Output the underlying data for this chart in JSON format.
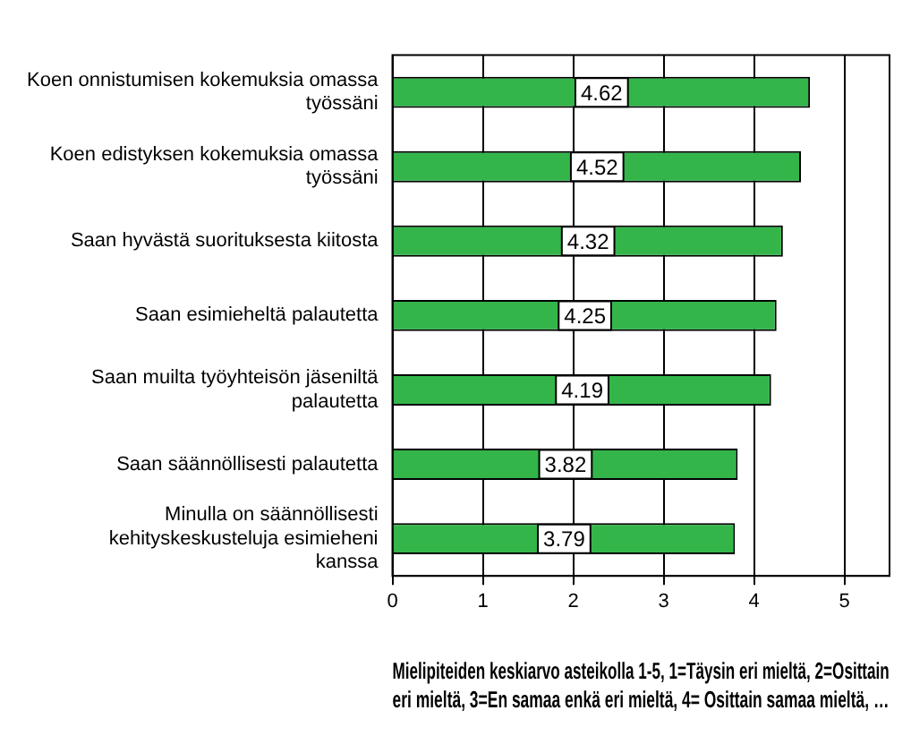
{
  "chart_data": {
    "type": "bar",
    "orientation": "horizontal",
    "xlabel": "Mielipiteiden keskiarvo asteikolla 1-5, 1=Täysin eri mieltä, 2=Osittain eri mieltä, 3=En samaa enkä eri mieltä, 4= Osittain samaa mieltä, …",
    "categories": [
      "Koen onnistumisen kokemuksia omassa työssäni",
      "Koen edistyksen kokemuksia omassa työssäni",
      "Saan hyvästä suorituksesta kiitosta",
      "Saan esimieheltä palautetta",
      "Saan muilta työyhteisön jäseniltä palautetta",
      "Saan säännöllisesti palautetta",
      "Minulla on säännöllisesti kehityskeskusteluja esimieheni kanssa"
    ],
    "values": [
      4.62,
      4.52,
      4.32,
      4.25,
      4.19,
      3.82,
      3.79
    ],
    "color": "#33b54a",
    "data_labels": true,
    "xlim": [
      0,
      5.5
    ],
    "xticks": [
      0,
      1,
      2,
      3,
      4,
      5
    ],
    "grid": "x",
    "legend": false
  }
}
